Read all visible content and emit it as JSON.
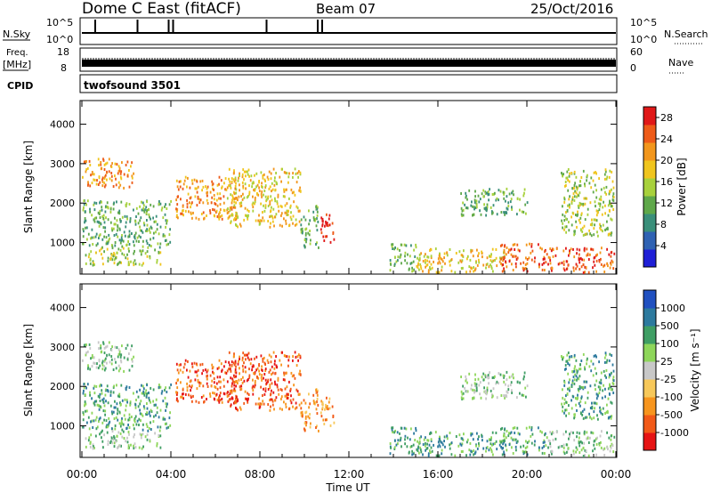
{
  "header": {
    "station": "Dome C East (fitACF)",
    "beam": "Beam 07",
    "date": "25/Oct/2016"
  },
  "strips": {
    "nsky": {
      "left_label": "N.Sky",
      "left_ticks": [
        "10^5",
        "10^0"
      ],
      "right_ticks": [
        "10^5",
        "10^0"
      ],
      "right_label": "N.Search",
      "noise_spike_hours": [
        0.6,
        2.5,
        3.9,
        4.1,
        8.3,
        10.6,
        10.8
      ]
    },
    "freq": {
      "left_label_top": "Freq.",
      "left_label_unit": "[MHz]",
      "left_ticks": [
        "18",
        "8"
      ],
      "right_ticks": [
        "60",
        "0"
      ],
      "right_label": "Nave"
    },
    "cpid": {
      "left_label": "CPID",
      "program": "twofsound 3501"
    }
  },
  "xaxis": {
    "ticks": [
      "00:00",
      "04:00",
      "08:00",
      "12:00",
      "16:00",
      "20:00",
      "00:00"
    ],
    "label": "Time UT"
  },
  "colors": {
    "power": [
      "#1f1fd6",
      "#2f62b3",
      "#3a8f7a",
      "#5fa84a",
      "#a8d13c",
      "#f0c51e",
      "#f2961c",
      "#ee5b18",
      "#e01818"
    ],
    "velocity": [
      "#e61414",
      "#f25a18",
      "#f7951e",
      "#f7c85a",
      "#c8c8c8",
      "#8ed65a",
      "#3f9e64",
      "#2d7a9e",
      "#2050c0"
    ]
  },
  "chart_data": [
    {
      "type": "heatmap",
      "name": "power-panel",
      "ylabel": "Slant Range [km]",
      "yticks": [
        1000,
        2000,
        3000,
        4000
      ],
      "ylim": [
        200,
        4600
      ],
      "xlim": [
        0,
        24
      ],
      "colorbar": {
        "label": "Power [dB]",
        "ticks": [
          "4",
          "8",
          "12",
          "16",
          "20",
          "24",
          "28"
        ],
        "range": [
          0,
          30
        ]
      },
      "echo_regions": [
        {
          "t0": 0.0,
          "t1": 2.3,
          "r0": 2400,
          "r1": 3150,
          "level": 6
        },
        {
          "t0": 0.0,
          "t1": 4.0,
          "r0": 900,
          "r1": 2100,
          "level": 3
        },
        {
          "t0": 0.1,
          "t1": 3.5,
          "r0": 450,
          "r1": 900,
          "level": 4
        },
        {
          "t0": 4.2,
          "t1": 7.0,
          "r0": 1600,
          "r1": 2700,
          "level": 6
        },
        {
          "t0": 6.5,
          "t1": 9.8,
          "r0": 1400,
          "r1": 2900,
          "level": 5
        },
        {
          "t0": 9.8,
          "t1": 10.6,
          "r0": 900,
          "r1": 2000,
          "level": 3
        },
        {
          "t0": 10.7,
          "t1": 11.3,
          "r0": 1000,
          "r1": 1800,
          "level": 8
        },
        {
          "t0": 13.8,
          "t1": 15.0,
          "r0": 300,
          "r1": 1000,
          "level": 3
        },
        {
          "t0": 15.0,
          "t1": 19.0,
          "r0": 250,
          "r1": 900,
          "level": 5
        },
        {
          "t0": 18.8,
          "t1": 20.8,
          "r0": 300,
          "r1": 1000,
          "level": 7
        },
        {
          "t0": 20.8,
          "t1": 24.0,
          "r0": 250,
          "r1": 900,
          "level": 7
        },
        {
          "t0": 21.5,
          "t1": 23.9,
          "r0": 1200,
          "r1": 2900,
          "level": 4
        },
        {
          "t0": 17.0,
          "t1": 20.0,
          "r0": 1700,
          "r1": 2400,
          "level": 3
        }
      ]
    },
    {
      "type": "heatmap",
      "name": "velocity-panel",
      "ylabel": "Slant Range [km]",
      "yticks": [
        1000,
        2000,
        3000,
        4000
      ],
      "ylim": [
        200,
        4600
      ],
      "xlim": [
        0,
        24
      ],
      "colorbar": {
        "label": "Velocity [m s⁻¹]",
        "ticks": [
          "-1000",
          "-500",
          "-100",
          "-25",
          "25",
          "100",
          "500",
          "1000"
        ],
        "range": [
          -1250,
          1250
        ]
      },
      "echo_regions": [
        {
          "t0": 0.0,
          "t1": 2.3,
          "r0": 2400,
          "r1": 3150,
          "level": 5
        },
        {
          "t0": 0.0,
          "t1": 4.0,
          "r0": 900,
          "r1": 2100,
          "level": 6
        },
        {
          "t0": 0.1,
          "t1": 3.5,
          "r0": 450,
          "r1": 900,
          "level": 5
        },
        {
          "t0": 4.2,
          "t1": 7.0,
          "r0": 1600,
          "r1": 2700,
          "level": 1
        },
        {
          "t0": 6.5,
          "t1": 9.8,
          "r0": 1400,
          "r1": 2900,
          "level": 1
        },
        {
          "t0": 9.8,
          "t1": 10.6,
          "r0": 900,
          "r1": 2000,
          "level": 2
        },
        {
          "t0": 10.7,
          "t1": 11.3,
          "r0": 1000,
          "r1": 1800,
          "level": 2
        },
        {
          "t0": 13.8,
          "t1": 15.0,
          "r0": 300,
          "r1": 1000,
          "level": 6
        },
        {
          "t0": 15.0,
          "t1": 19.0,
          "r0": 250,
          "r1": 900,
          "level": 6
        },
        {
          "t0": 18.8,
          "t1": 20.8,
          "r0": 300,
          "r1": 1000,
          "level": 6
        },
        {
          "t0": 20.8,
          "t1": 24.0,
          "r0": 250,
          "r1": 900,
          "level": 5
        },
        {
          "t0": 21.5,
          "t1": 23.9,
          "r0": 1200,
          "r1": 2900,
          "level": 6
        },
        {
          "t0": 17.0,
          "t1": 20.0,
          "r0": 1700,
          "r1": 2400,
          "level": 5
        }
      ]
    }
  ]
}
